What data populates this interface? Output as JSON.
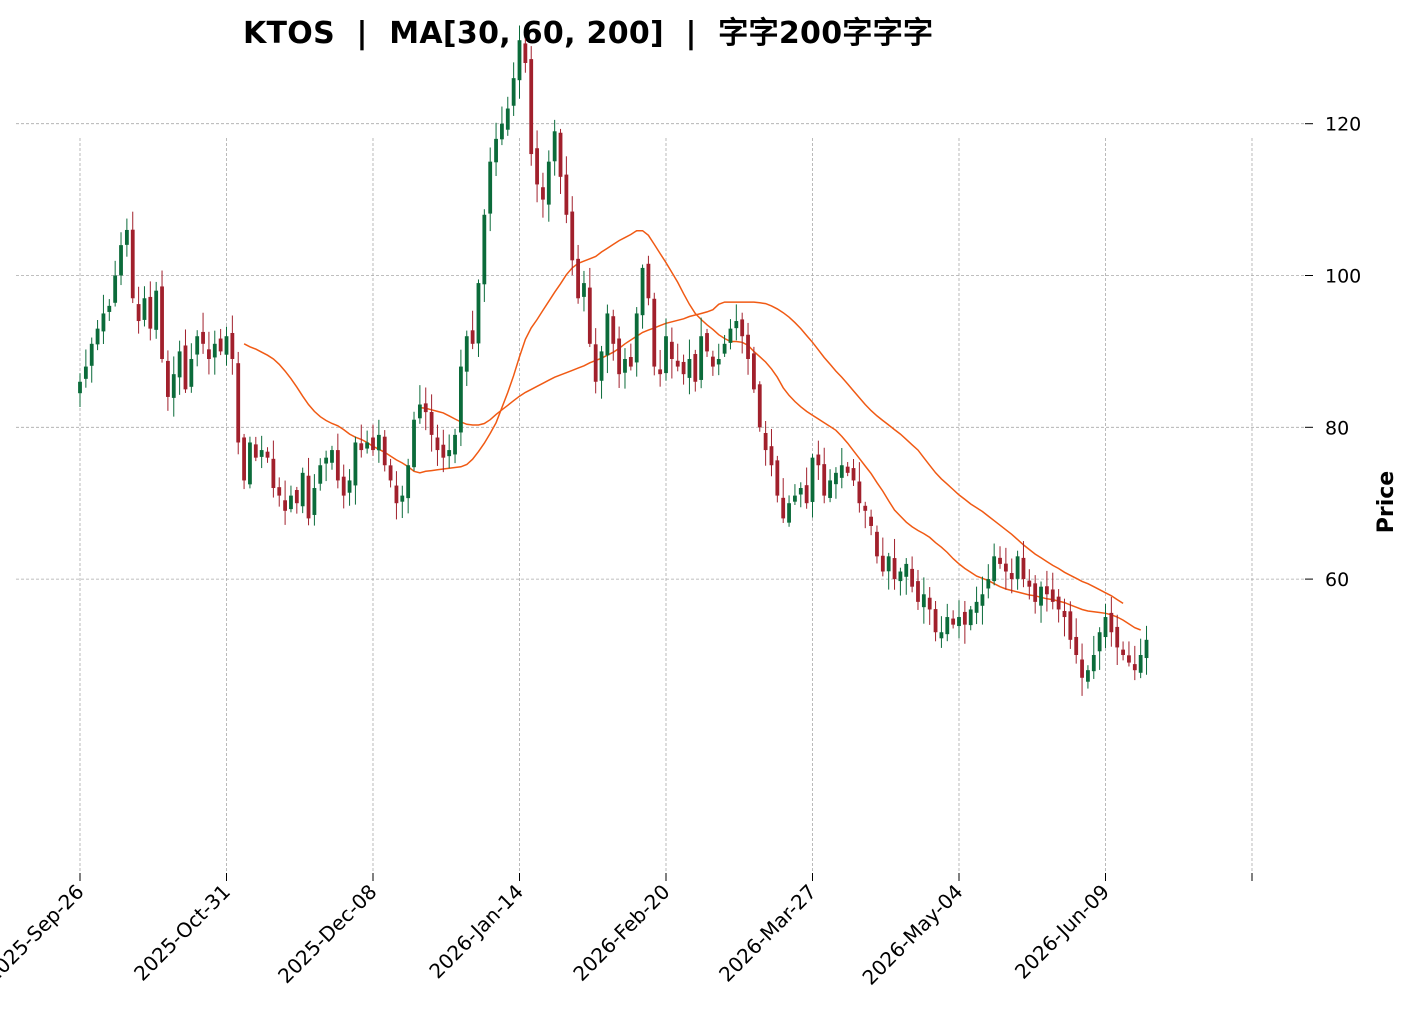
{
  "chart_data": {
    "type": "candlestick",
    "title": "KTOS  |  MA[30, 60, 200]  |  字字200字字字",
    "xlabel": "",
    "ylabel": "Price",
    "ylim": [
      43,
      140
    ],
    "yticks": [
      60,
      80,
      100,
      120
    ],
    "xtick_labels": [
      "2025-Sep-26",
      "2025-Oct-31",
      "2025-Dec-08",
      "2026-Jan-14",
      "2026-Feb-20",
      "2026-Mar-27",
      "2026-May-04",
      "2026-Jun-09"
    ],
    "xtick_positions": [
      0,
      25,
      50,
      75,
      100,
      125,
      150,
      175
    ],
    "grid": true,
    "colors": {
      "up": "#0b6b3a",
      "down": "#a1202c",
      "ma": "#f05a14",
      "grid": "#aaaaaa"
    },
    "closes": [
      86,
      88,
      91,
      93,
      95,
      96,
      100,
      104,
      106,
      97,
      94,
      97,
      93,
      98,
      89,
      84,
      87,
      90,
      85,
      89,
      92,
      91,
      89,
      91,
      90,
      92,
      89,
      78,
      73,
      78,
      76,
      77,
      76,
      72,
      71,
      69,
      71,
      70,
      74,
      68,
      72,
      75,
      76,
      77,
      73,
      71,
      73,
      78,
      77,
      78,
      77,
      79,
      75,
      73,
      70,
      71,
      75,
      81,
      83,
      82,
      79,
      77,
      76,
      77,
      79,
      88,
      92,
      91,
      99,
      108,
      115,
      118,
      120,
      122,
      126,
      131,
      128,
      116,
      112,
      110,
      115,
      119,
      113,
      108,
      102,
      97,
      99,
      91,
      86,
      90,
      95,
      91,
      87,
      89,
      88,
      95,
      101,
      97,
      88,
      87,
      92,
      89,
      88,
      87,
      89,
      86,
      92,
      90,
      88,
      89,
      91,
      93,
      94,
      92,
      89,
      85,
      80,
      77,
      75,
      71,
      68,
      70,
      71,
      72,
      70,
      76,
      75,
      71,
      73,
      74,
      75,
      74,
      73,
      70,
      69,
      67,
      63,
      61,
      63,
      60,
      61,
      62,
      59,
      57,
      58,
      56,
      53,
      53,
      55,
      54,
      55,
      54,
      56,
      57,
      58,
      60,
      63,
      62,
      61,
      60,
      63,
      60,
      59,
      57,
      59,
      58,
      57,
      56,
      55,
      52,
      50,
      47,
      48,
      50,
      53,
      55,
      53,
      51,
      50,
      49,
      48,
      50,
      52
    ],
    "series": [
      {
        "name": "MA30",
        "start": 28,
        "values": [
          91.0,
          90.6,
          90.3,
          89.9,
          89.5,
          89.0,
          88.3,
          87.4,
          86.4,
          85.3,
          84.1,
          83.0,
          82.1,
          81.4,
          80.9,
          80.5,
          80.2,
          79.7,
          79.1,
          78.7,
          78.4,
          78.0,
          77.5,
          77.1,
          76.7,
          76.2,
          75.7,
          75.3,
          74.8,
          74.2,
          74.0,
          74.2,
          74.3,
          74.4,
          74.5,
          74.6,
          74.7,
          74.8,
          75.1,
          75.8,
          76.8,
          77.9,
          79.2,
          80.6,
          82.6,
          84.6,
          86.8,
          89.3,
          91.6,
          93.1,
          94.2,
          95.4,
          96.6,
          97.8,
          98.9,
          100.1,
          101.0,
          101.6,
          101.9,
          102.2,
          102.5,
          103.1,
          103.6,
          104.1,
          104.6,
          105.0,
          105.4,
          105.9,
          105.9,
          105.3,
          104.1,
          102.9,
          101.7,
          100.4,
          99.1,
          97.6,
          96.2,
          95.0,
          94.2,
          93.5,
          92.9,
          92.2,
          91.7,
          91.3,
          91.3,
          91.2,
          90.8,
          90.0,
          89.3,
          88.6,
          87.7,
          86.6,
          85.2,
          84.2,
          83.4,
          82.7,
          82.1,
          81.6,
          81.1,
          80.6,
          80.1,
          79.6,
          78.8,
          77.9,
          76.9,
          75.9,
          74.9,
          73.9,
          72.7,
          71.6,
          70.3,
          69.1,
          68.3,
          67.5,
          66.9,
          66.4,
          66.0,
          65.5,
          64.8,
          64.2,
          63.5,
          62.7,
          62.0,
          61.4,
          60.9,
          60.4,
          60.1,
          59.8,
          59.4,
          59.0,
          58.7,
          58.5,
          58.3,
          58.1,
          57.9,
          57.8,
          57.6,
          57.4,
          57.3,
          57.1,
          56.9,
          56.6,
          56.3,
          56.0,
          55.8,
          55.7,
          55.6,
          55.5,
          55.3,
          55.0,
          54.6,
          54.1,
          53.6,
          53.3
        ]
      },
      {
        "name": "MA60",
        "start": 58,
        "values": [
          82.6,
          82.5,
          82.3,
          82.1,
          81.9,
          81.5,
          81.1,
          80.7,
          80.4,
          80.3,
          80.3,
          80.5,
          81.0,
          81.7,
          82.3,
          82.9,
          83.5,
          84.1,
          84.6,
          85.0,
          85.4,
          85.8,
          86.2,
          86.6,
          86.9,
          87.2,
          87.5,
          87.8,
          88.1,
          88.5,
          88.8,
          89.1,
          89.5,
          89.9,
          90.4,
          91.0,
          91.5,
          92.0,
          92.5,
          92.8,
          93.1,
          93.4,
          93.7,
          93.9,
          94.1,
          94.3,
          94.6,
          94.8,
          95.0,
          95.2,
          95.5,
          96.2,
          96.5,
          96.5,
          96.5,
          96.5,
          96.5,
          96.5,
          96.4,
          96.3,
          96.0,
          95.6,
          95.1,
          94.5,
          93.8,
          93.0,
          92.1,
          91.2,
          90.2,
          89.2,
          88.3,
          87.4,
          86.6,
          85.7,
          84.8,
          83.9,
          83.0,
          82.2,
          81.5,
          80.9,
          80.3,
          79.7,
          79.1,
          78.4,
          77.7,
          77.0,
          76.0,
          75.0,
          74.0,
          73.2,
          72.5,
          71.8,
          71.1,
          70.5,
          69.9,
          69.4,
          68.9,
          68.3,
          67.7,
          67.1,
          66.5,
          65.9,
          65.2,
          64.5,
          63.9,
          63.3,
          62.8,
          62.3,
          61.8,
          61.4,
          60.9,
          60.5,
          60.1,
          59.7,
          59.4,
          59.0,
          58.6,
          58.2,
          57.8,
          57.3,
          56.8
        ]
      }
    ]
  }
}
